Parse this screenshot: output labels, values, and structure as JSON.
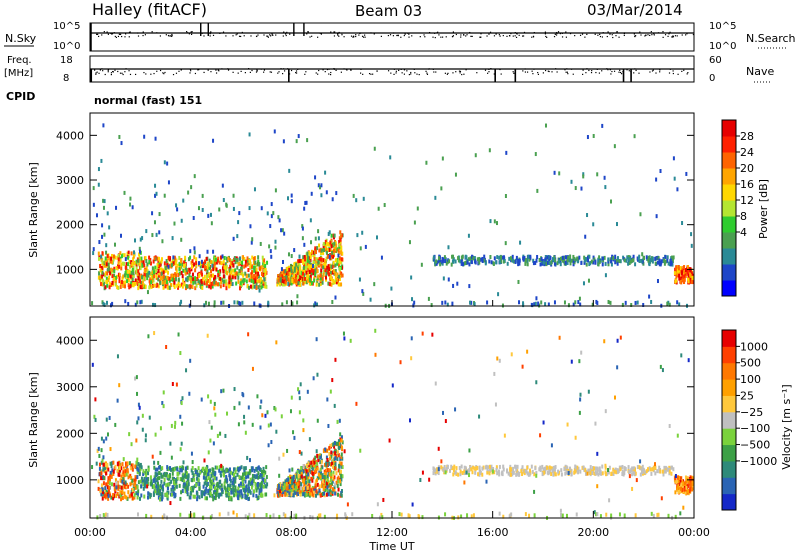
{
  "header": {
    "station": "Halley (fitACF)",
    "beam": "Beam 03",
    "date": "03/Mar/2014"
  },
  "status_panels": {
    "nsky_label": "N.Sky",
    "nsearch_label": "N.Search",
    "nsky_ticks_left": [
      "10^5",
      "10^0"
    ],
    "nsky_ticks_right": [
      "10^5",
      "10^0"
    ],
    "freq_label_1": "Freq.",
    "freq_label_2": "[MHz]",
    "freq_ticks": [
      "18",
      "8"
    ],
    "nave_label": "Nave",
    "nave_ticks": [
      "60",
      "0"
    ],
    "cpid_label": "CPID",
    "cpid_text": "normal (fast) 151"
  },
  "chart_data": [
    {
      "type": "heatmap",
      "name": "power",
      "ylabel": "Slant Range [km]",
      "yticks": [
        "4000",
        "3000",
        "2000",
        "1000"
      ],
      "ylim": [
        180,
        4500
      ],
      "xlim": [
        0,
        24
      ],
      "colorbar_label": "Power [dB]",
      "colorbar_ticks": [
        "28",
        "24",
        "20",
        "16",
        "12",
        "8",
        "4"
      ],
      "colorbar_colors": [
        "#0000ff",
        "#1e46c8",
        "#2a8a96",
        "#4aa050",
        "#2fcc2f",
        "#b4e632",
        "#ffd700",
        "#ffa500",
        "#ff6400",
        "#ff2000",
        "#e60000"
      ]
    },
    {
      "type": "heatmap",
      "name": "velocity",
      "ylabel": "Slant Range [km]",
      "yticks": [
        "4000",
        "3000",
        "2000",
        "1000"
      ],
      "ylim": [
        180,
        4500
      ],
      "xlim": [
        0,
        24
      ],
      "colorbar_label": "Velocity [m s⁻¹]",
      "colorbar_ticks": [
        "1000",
        "500",
        "100",
        "25",
        "−25",
        "−100",
        "−500",
        "−1000"
      ],
      "colorbar_colors": [
        "#1428c8",
        "#2a64b4",
        "#2e8a7a",
        "#3ca046",
        "#7ad23c",
        "#c0c0c0",
        "#ffc83c",
        "#ffa000",
        "#ff7800",
        "#ff4000",
        "#e60000"
      ]
    }
  ],
  "x_axis": {
    "ticks": [
      "00:00",
      "04:00",
      "08:00",
      "12:00",
      "16:00",
      "20:00",
      "00:00"
    ],
    "label": "Time UT"
  }
}
